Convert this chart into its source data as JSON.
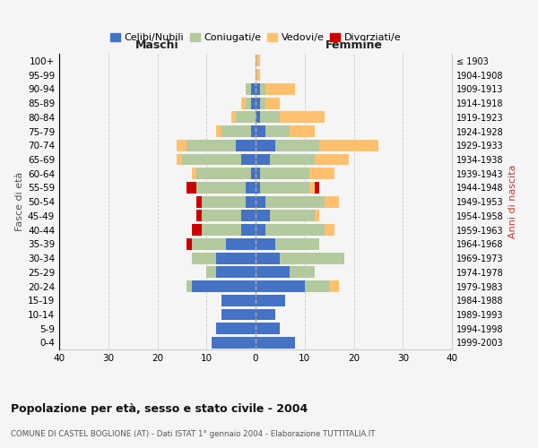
{
  "age_groups": [
    "0-4",
    "5-9",
    "10-14",
    "15-19",
    "20-24",
    "25-29",
    "30-34",
    "35-39",
    "40-44",
    "45-49",
    "50-54",
    "55-59",
    "60-64",
    "65-69",
    "70-74",
    "75-79",
    "80-84",
    "85-89",
    "90-94",
    "95-99",
    "100+"
  ],
  "birth_years": [
    "1999-2003",
    "1994-1998",
    "1989-1993",
    "1984-1988",
    "1979-1983",
    "1974-1978",
    "1969-1973",
    "1964-1968",
    "1959-1963",
    "1954-1958",
    "1949-1953",
    "1944-1948",
    "1939-1943",
    "1934-1938",
    "1929-1933",
    "1924-1928",
    "1919-1923",
    "1914-1918",
    "1909-1913",
    "1904-1908",
    "≤ 1903"
  ],
  "maschi_celibi": [
    9,
    8,
    7,
    7,
    13,
    8,
    8,
    6,
    3,
    3,
    2,
    2,
    1,
    3,
    4,
    1,
    0,
    1,
    1,
    0,
    0
  ],
  "maschi_coniugati": [
    0,
    0,
    0,
    0,
    1,
    2,
    5,
    7,
    8,
    8,
    9,
    10,
    11,
    12,
    10,
    6,
    4,
    1,
    1,
    0,
    0
  ],
  "maschi_vedovi": [
    0,
    0,
    0,
    0,
    0,
    0,
    0,
    0,
    0,
    0,
    0,
    0,
    1,
    1,
    2,
    1,
    1,
    1,
    0,
    0,
    0
  ],
  "maschi_divorziati": [
    0,
    0,
    0,
    0,
    0,
    0,
    0,
    1,
    2,
    1,
    1,
    2,
    0,
    0,
    0,
    0,
    0,
    0,
    0,
    0,
    0
  ],
  "femmine_celibi": [
    8,
    5,
    4,
    6,
    10,
    7,
    5,
    4,
    2,
    3,
    2,
    1,
    1,
    3,
    4,
    2,
    1,
    1,
    1,
    0,
    0
  ],
  "femmine_coniugati": [
    0,
    0,
    0,
    0,
    5,
    5,
    13,
    9,
    12,
    9,
    12,
    10,
    10,
    9,
    9,
    5,
    4,
    1,
    1,
    0,
    0
  ],
  "femmine_vedovi": [
    0,
    0,
    0,
    0,
    2,
    0,
    0,
    0,
    2,
    1,
    3,
    1,
    5,
    7,
    12,
    5,
    9,
    3,
    6,
    1,
    1
  ],
  "femmine_divorziati": [
    0,
    0,
    0,
    0,
    0,
    0,
    0,
    0,
    0,
    0,
    0,
    1,
    0,
    0,
    0,
    0,
    0,
    0,
    0,
    0,
    0
  ],
  "color_celibi": "#4472c4",
  "color_coniugati": "#b3c99e",
  "color_vedovi": "#ffc06e",
  "color_divorziati": "#cc0000",
  "title": "Popolazione per età, sesso e stato civile - 2004",
  "subtitle": "COMUNE DI CASTEL BOGLIONE (AT) - Dati ISTAT 1° gennaio 2004 - Elaborazione TUTTITALIA.IT",
  "xlabel_maschi": "Maschi",
  "xlabel_femmine": "Femmine",
  "ylabel_left": "Fasce di età",
  "ylabel_right": "Anni di nascita",
  "xlim": 40,
  "legend_labels": [
    "Celibi/Nubili",
    "Coniugati/e",
    "Vedovi/e",
    "Divorziati/e"
  ],
  "bg_color": "#f5f5f5",
  "grid_color": "#cccccc"
}
